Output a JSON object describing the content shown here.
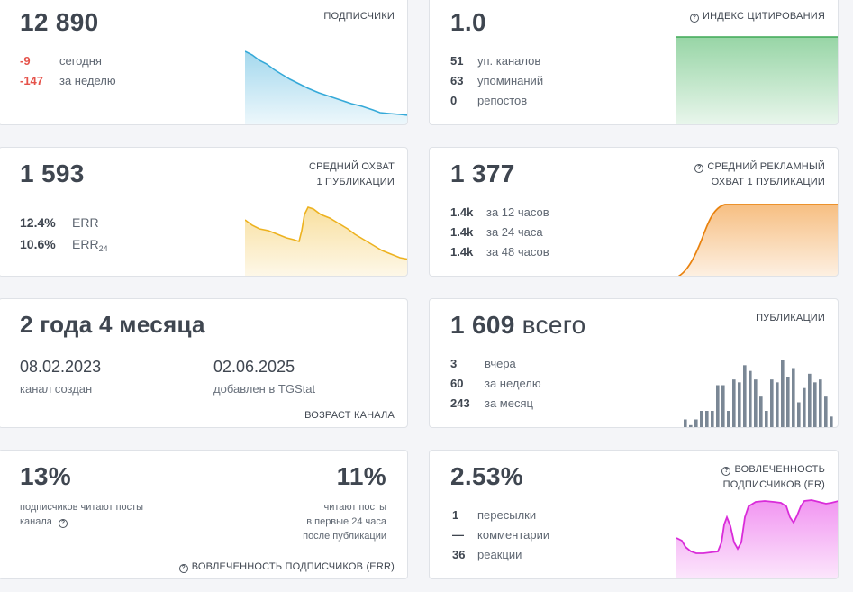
{
  "subscribers": {
    "value": "12 890",
    "label": "ПОДПИСЧИКИ",
    "today_value": "-9",
    "today_text": "сегодня",
    "week_value": "-147",
    "week_text": "за неделю",
    "color": "#35a9d8"
  },
  "citation": {
    "value": "1.0",
    "label": "ИНДЕКС ЦИТИРОВАНИЯ",
    "rows": [
      {
        "value": "51",
        "text": "уп. каналов"
      },
      {
        "value": "63",
        "text": "упоминаний"
      },
      {
        "value": "0",
        "text": "репостов"
      }
    ],
    "color": "#52b96a"
  },
  "reach": {
    "value": "1 593",
    "label_line1": "СРЕДНИЙ ОХВАТ",
    "label_line2": "1 ПУБЛИКАЦИИ",
    "err_value": "12.4%",
    "err_text": "ERR",
    "err24_value": "10.6%",
    "err24_text": "ERR",
    "err24_sub": "24",
    "color": "#f0b92a"
  },
  "ad_reach": {
    "value": "1 377",
    "label_line1": "СРЕДНИЙ РЕКЛАМНЫЙ",
    "label_line2": "ОХВАТ 1 ПУБЛИКАЦИИ",
    "rows": [
      {
        "value": "1.4k",
        "text": "за 12 часов"
      },
      {
        "value": "1.4k",
        "text": "за 24 часа"
      },
      {
        "value": "1.4k",
        "text": "за 48 часов"
      }
    ],
    "color": "#f08a1c"
  },
  "age": {
    "value": "2 года 4 месяца",
    "created_date": "08.02.2023",
    "created_text": "канал создан",
    "added_date": "02.06.2025",
    "added_text": "добавлен в TGStat",
    "label": "ВОЗРАСТ КАНАЛА"
  },
  "posts": {
    "value": "1 609",
    "value_suffix": "всего",
    "label": "ПУБЛИКАЦИИ",
    "rows": [
      {
        "value": "3",
        "text": "вчера"
      },
      {
        "value": "60",
        "text": "за неделю"
      },
      {
        "value": "243",
        "text": "за месяц"
      }
    ],
    "bars": [
      3,
      1,
      3,
      6,
      6,
      6,
      15,
      15,
      6,
      17,
      16,
      22,
      20,
      17,
      11,
      6,
      17,
      16,
      24,
      18,
      21,
      9,
      14,
      19,
      16,
      17,
      11,
      4
    ],
    "color": "#7a8795"
  },
  "err": {
    "left_value": "13%",
    "left_line1": "подписчиков читают посты",
    "left_line2": "канала",
    "right_value": "11%",
    "right_line1": "читают посты",
    "right_line2": "в первые 24 часа",
    "right_line3": "после публикации",
    "label": "ВОВЛЕЧЕННОСТЬ ПОДПИСЧИКОВ (ERR)"
  },
  "er": {
    "value": "2.53%",
    "label_line1": "ВОВЛЕЧЕННОСТЬ",
    "label_line2": "ПОДПИСЧИКОВ (ER)",
    "rows": [
      {
        "value": "1",
        "text": "пересылки"
      },
      {
        "value": "—",
        "text": "комментарии"
      },
      {
        "value": "36",
        "text": "реакции"
      }
    ],
    "color": "#e63ee6"
  }
}
